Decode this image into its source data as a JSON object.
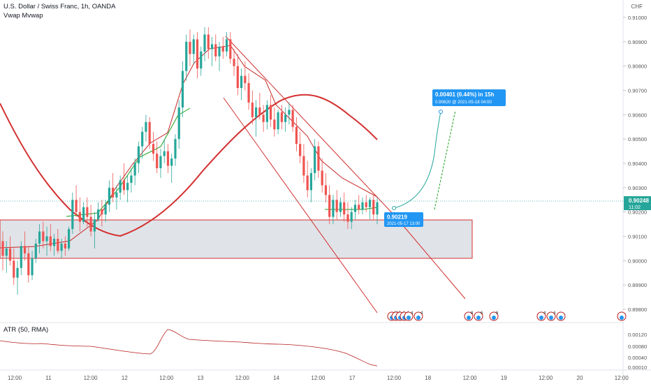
{
  "chart": {
    "title": "U.S. Dollar / Swiss Franc, 1h, OANDA",
    "indicator1": "Vwap Mvwap",
    "indicator2": "ATR (50, RMA)",
    "currency": "CHF"
  },
  "price_axis": {
    "ticks": [
      "0.91000",
      "0.90900",
      "0.90800",
      "0.90700",
      "0.90600",
      "0.90500",
      "0.90400",
      "0.90300",
      "0.90200",
      "0.90100",
      "0.90000",
      "0.89900",
      "0.89800"
    ],
    "current_price": "0.90248",
    "countdown": "11:02"
  },
  "atr_axis": {
    "ticks": [
      "0.00120",
      "0.00080",
      "0.00040",
      "0.00010"
    ]
  },
  "time_axis": {
    "ticks": [
      "12:00",
      "11",
      "12:00",
      "12",
      "12:00",
      "13",
      "12:00",
      "14",
      "12:00",
      "17",
      "12:00",
      "18",
      "12:00",
      "19",
      "12:00",
      "20",
      "12:00"
    ]
  },
  "annotations": {
    "entry_price": "0.90219",
    "entry_time": "2021-05-17 13:00",
    "projection_main": "0.00401 (0.44%) in 15h",
    "projection_sub": "0.90620 @ 2021-05-18  04:00"
  },
  "events": {
    "labels": [
      "11",
      "2",
      "4",
      "4",
      "4",
      "4",
      "8",
      "6",
      "6",
      "4",
      "4"
    ]
  },
  "colors": {
    "up": "#26a69a",
    "down": "#ef5350",
    "accent": "#2196f3",
    "trend": "#d32f2f",
    "zone_fill": "#d5d9e0",
    "vwap": "#1b9e1b",
    "atr": "#b71c1c"
  },
  "chart_data": {
    "type": "candlestick",
    "series": [
      {
        "o": 0.9008,
        "h": 0.9012,
        "l": 0.8996,
        "c": 0.9002
      },
      {
        "o": 0.9002,
        "h": 0.9008,
        "l": 0.8995,
        "c": 0.9005
      },
      {
        "o": 0.9005,
        "h": 0.901,
        "l": 0.8998,
        "c": 0.9
      },
      {
        "o": 0.9,
        "h": 0.9005,
        "l": 0.899,
        "c": 0.8993
      },
      {
        "o": 0.8993,
        "h": 0.9,
        "l": 0.8986,
        "c": 0.8997
      },
      {
        "o": 0.8997,
        "h": 0.9008,
        "l": 0.8994,
        "c": 0.9006
      },
      {
        "o": 0.9006,
        "h": 0.9012,
        "l": 0.9,
        "c": 0.9003
      },
      {
        "o": 0.9003,
        "h": 0.9006,
        "l": 0.8991,
        "c": 0.8994
      },
      {
        "o": 0.8994,
        "h": 0.9004,
        "l": 0.8992,
        "c": 0.9001
      },
      {
        "o": 0.9001,
        "h": 0.9009,
        "l": 0.8999,
        "c": 0.9007
      },
      {
        "o": 0.9007,
        "h": 0.9015,
        "l": 0.9003,
        "c": 0.9012
      },
      {
        "o": 0.9012,
        "h": 0.9016,
        "l": 0.9005,
        "c": 0.9008
      },
      {
        "o": 0.9008,
        "h": 0.9014,
        "l": 0.9002,
        "c": 0.901
      },
      {
        "o": 0.901,
        "h": 0.9015,
        "l": 0.9004,
        "c": 0.9006
      },
      {
        "o": 0.9006,
        "h": 0.9011,
        "l": 0.9002,
        "c": 0.9009
      },
      {
        "o": 0.9009,
        "h": 0.9013,
        "l": 0.9003,
        "c": 0.9004
      },
      {
        "o": 0.9004,
        "h": 0.9009,
        "l": 0.9001,
        "c": 0.9007
      },
      {
        "o": 0.9007,
        "h": 0.901,
        "l": 0.9002,
        "c": 0.9005
      },
      {
        "o": 0.9005,
        "h": 0.9014,
        "l": 0.9004,
        "c": 0.9013
      },
      {
        "o": 0.9013,
        "h": 0.9028,
        "l": 0.9011,
        "c": 0.9025
      },
      {
        "o": 0.9025,
        "h": 0.9031,
        "l": 0.9018,
        "c": 0.902
      },
      {
        "o": 0.902,
        "h": 0.9026,
        "l": 0.9012,
        "c": 0.9016
      },
      {
        "o": 0.9016,
        "h": 0.9024,
        "l": 0.9015,
        "c": 0.9022
      },
      {
        "o": 0.9022,
        "h": 0.9026,
        "l": 0.9014,
        "c": 0.9018
      },
      {
        "o": 0.9018,
        "h": 0.9023,
        "l": 0.901,
        "c": 0.9012
      },
      {
        "o": 0.9012,
        "h": 0.902,
        "l": 0.9005,
        "c": 0.9017
      },
      {
        "o": 0.9017,
        "h": 0.9024,
        "l": 0.9016,
        "c": 0.9021
      },
      {
        "o": 0.9021,
        "h": 0.9025,
        "l": 0.9014,
        "c": 0.9019
      },
      {
        "o": 0.9019,
        "h": 0.9025,
        "l": 0.9016,
        "c": 0.9023
      },
      {
        "o": 0.9023,
        "h": 0.9033,
        "l": 0.902,
        "c": 0.903
      },
      {
        "o": 0.903,
        "h": 0.9036,
        "l": 0.9024,
        "c": 0.9026
      },
      {
        "o": 0.9026,
        "h": 0.9031,
        "l": 0.9021,
        "c": 0.9028
      },
      {
        "o": 0.9028,
        "h": 0.9035,
        "l": 0.9025,
        "c": 0.9033
      },
      {
        "o": 0.9033,
        "h": 0.904,
        "l": 0.9027,
        "c": 0.9029
      },
      {
        "o": 0.9029,
        "h": 0.9035,
        "l": 0.9024,
        "c": 0.9032
      },
      {
        "o": 0.9032,
        "h": 0.9038,
        "l": 0.9028,
        "c": 0.9035
      },
      {
        "o": 0.9035,
        "h": 0.9042,
        "l": 0.9031,
        "c": 0.904
      },
      {
        "o": 0.904,
        "h": 0.9049,
        "l": 0.9036,
        "c": 0.9047
      },
      {
        "o": 0.9047,
        "h": 0.9055,
        "l": 0.9042,
        "c": 0.9053
      },
      {
        "o": 0.9053,
        "h": 0.906,
        "l": 0.9049,
        "c": 0.9057
      },
      {
        "o": 0.9057,
        "h": 0.9059,
        "l": 0.9046,
        "c": 0.9048
      },
      {
        "o": 0.9048,
        "h": 0.9053,
        "l": 0.9041,
        "c": 0.9044
      },
      {
        "o": 0.9044,
        "h": 0.9049,
        "l": 0.9036,
        "c": 0.9038
      },
      {
        "o": 0.9038,
        "h": 0.9046,
        "l": 0.9034,
        "c": 0.9043
      },
      {
        "o": 0.9043,
        "h": 0.905,
        "l": 0.904,
        "c": 0.9045
      },
      {
        "o": 0.9045,
        "h": 0.9048,
        "l": 0.9036,
        "c": 0.9039
      },
      {
        "o": 0.9039,
        "h": 0.9044,
        "l": 0.9032,
        "c": 0.9042
      },
      {
        "o": 0.9042,
        "h": 0.9052,
        "l": 0.9039,
        "c": 0.905
      },
      {
        "o": 0.905,
        "h": 0.9066,
        "l": 0.9046,
        "c": 0.9063
      },
      {
        "o": 0.9063,
        "h": 0.9082,
        "l": 0.9059,
        "c": 0.9078
      },
      {
        "o": 0.9078,
        "h": 0.9093,
        "l": 0.9074,
        "c": 0.909
      },
      {
        "o": 0.909,
        "h": 0.9095,
        "l": 0.908,
        "c": 0.9085
      },
      {
        "o": 0.9085,
        "h": 0.9093,
        "l": 0.9081,
        "c": 0.9091
      },
      {
        "o": 0.9091,
        "h": 0.9094,
        "l": 0.9075,
        "c": 0.9079
      },
      {
        "o": 0.9079,
        "h": 0.9088,
        "l": 0.9076,
        "c": 0.9086
      },
      {
        "o": 0.9086,
        "h": 0.9096,
        "l": 0.9082,
        "c": 0.9093
      },
      {
        "o": 0.9093,
        "h": 0.9096,
        "l": 0.9083,
        "c": 0.9087
      },
      {
        "o": 0.9087,
        "h": 0.9092,
        "l": 0.908,
        "c": 0.9089
      },
      {
        "o": 0.9089,
        "h": 0.9093,
        "l": 0.9082,
        "c": 0.9084
      },
      {
        "o": 0.9084,
        "h": 0.909,
        "l": 0.9078,
        "c": 0.9088
      },
      {
        "o": 0.9088,
        "h": 0.9092,
        "l": 0.9083,
        "c": 0.9086
      },
      {
        "o": 0.9086,
        "h": 0.9094,
        "l": 0.9084,
        "c": 0.9091
      },
      {
        "o": 0.9091,
        "h": 0.9094,
        "l": 0.9081,
        "c": 0.9083
      },
      {
        "o": 0.9083,
        "h": 0.9087,
        "l": 0.9076,
        "c": 0.908
      },
      {
        "o": 0.908,
        "h": 0.9085,
        "l": 0.9068,
        "c": 0.9071
      },
      {
        "o": 0.9071,
        "h": 0.9079,
        "l": 0.9066,
        "c": 0.9076
      },
      {
        "o": 0.9076,
        "h": 0.9082,
        "l": 0.907,
        "c": 0.9073
      },
      {
        "o": 0.9073,
        "h": 0.9077,
        "l": 0.9062,
        "c": 0.9065
      },
      {
        "o": 0.9065,
        "h": 0.907,
        "l": 0.9056,
        "c": 0.9059
      },
      {
        "o": 0.9059,
        "h": 0.9066,
        "l": 0.9051,
        "c": 0.9063
      },
      {
        "o": 0.9063,
        "h": 0.9069,
        "l": 0.9058,
        "c": 0.906
      },
      {
        "o": 0.906,
        "h": 0.9064,
        "l": 0.9053,
        "c": 0.9057
      },
      {
        "o": 0.9057,
        "h": 0.9066,
        "l": 0.9054,
        "c": 0.9064
      },
      {
        "o": 0.9064,
        "h": 0.9068,
        "l": 0.9055,
        "c": 0.9058
      },
      {
        "o": 0.9058,
        "h": 0.9063,
        "l": 0.9051,
        "c": 0.9054
      },
      {
        "o": 0.9054,
        "h": 0.9062,
        "l": 0.9052,
        "c": 0.9061
      },
      {
        "o": 0.9061,
        "h": 0.9064,
        "l": 0.9054,
        "c": 0.9057
      },
      {
        "o": 0.9057,
        "h": 0.9063,
        "l": 0.9053,
        "c": 0.906
      },
      {
        "o": 0.906,
        "h": 0.9065,
        "l": 0.9056,
        "c": 0.9062
      },
      {
        "o": 0.9062,
        "h": 0.9064,
        "l": 0.9053,
        "c": 0.9055
      },
      {
        "o": 0.9055,
        "h": 0.9059,
        "l": 0.9045,
        "c": 0.9048
      },
      {
        "o": 0.9048,
        "h": 0.9053,
        "l": 0.904,
        "c": 0.9043
      },
      {
        "o": 0.9043,
        "h": 0.9048,
        "l": 0.9032,
        "c": 0.9035
      },
      {
        "o": 0.9035,
        "h": 0.9041,
        "l": 0.9026,
        "c": 0.9029
      },
      {
        "o": 0.9029,
        "h": 0.9038,
        "l": 0.9024,
        "c": 0.9036
      },
      {
        "o": 0.9036,
        "h": 0.905,
        "l": 0.9033,
        "c": 0.9047
      },
      {
        "o": 0.9047,
        "h": 0.9049,
        "l": 0.9034,
        "c": 0.9037
      },
      {
        "o": 0.9037,
        "h": 0.9042,
        "l": 0.9028,
        "c": 0.9031
      },
      {
        "o": 0.9031,
        "h": 0.9036,
        "l": 0.9024,
        "c": 0.9027
      },
      {
        "o": 0.9027,
        "h": 0.9031,
        "l": 0.9015,
        "c": 0.9018
      },
      {
        "o": 0.9018,
        "h": 0.9027,
        "l": 0.9015,
        "c": 0.9025
      },
      {
        "o": 0.9025,
        "h": 0.9029,
        "l": 0.9017,
        "c": 0.902
      },
      {
        "o": 0.902,
        "h": 0.9026,
        "l": 0.9018,
        "c": 0.9024
      },
      {
        "o": 0.9024,
        "h": 0.9028,
        "l": 0.9016,
        "c": 0.9019
      },
      {
        "o": 0.9019,
        "h": 0.9024,
        "l": 0.9013,
        "c": 0.9016
      },
      {
        "o": 0.9016,
        "h": 0.9022,
        "l": 0.9013,
        "c": 0.902
      },
      {
        "o": 0.902,
        "h": 0.9025,
        "l": 0.9017,
        "c": 0.9023
      },
      {
        "o": 0.9023,
        "h": 0.9027,
        "l": 0.9019,
        "c": 0.9021
      },
      {
        "o": 0.9021,
        "h": 0.9026,
        "l": 0.9019,
        "c": 0.9024
      },
      {
        "o": 0.9024,
        "h": 0.9027,
        "l": 0.902,
        "c": 0.9022
      },
      {
        "o": 0.9022,
        "h": 0.9026,
        "l": 0.9017,
        "c": 0.9025
      },
      {
        "o": 0.9025,
        "h": 0.9027,
        "l": 0.9017,
        "c": 0.9019
      },
      {
        "o": 0.9019,
        "h": 0.9026,
        "l": 0.9015,
        "c": 0.9024
      }
    ]
  }
}
